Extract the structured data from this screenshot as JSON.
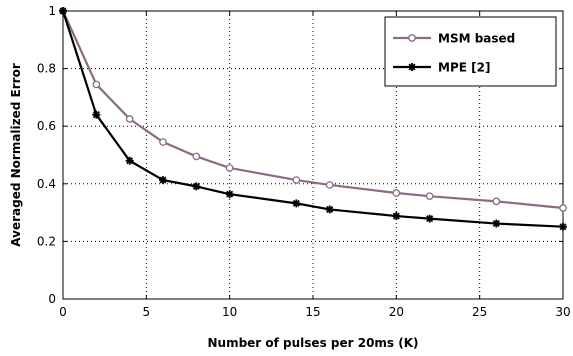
{
  "chart_data": {
    "type": "line",
    "title": "",
    "xlabel": "Number of pulses per 20ms (K)",
    "ylabel": "Averaged Normalized Error",
    "xlim": [
      0,
      30
    ],
    "ylim": [
      0,
      1
    ],
    "xticks": [
      0,
      5,
      10,
      15,
      20,
      25,
      30
    ],
    "yticks": [
      0,
      0.2,
      0.4,
      0.6,
      0.8,
      1
    ],
    "grid": true,
    "legend_position": "top-right",
    "series": [
      {
        "name": "MSM based",
        "color": "#8b6b85",
        "marker": "circle",
        "x": [
          0,
          2,
          4,
          6,
          8,
          10,
          14,
          16,
          20,
          22,
          26,
          30
        ],
        "values": [
          1.0,
          0.745,
          0.625,
          0.545,
          0.495,
          0.455,
          0.413,
          0.396,
          0.368,
          0.357,
          0.339,
          0.316
        ]
      },
      {
        "name": "MPE [2]",
        "color": "#000000",
        "marker": "star",
        "x": [
          0,
          2,
          4,
          6,
          8,
          10,
          14,
          16,
          20,
          22,
          26,
          30
        ],
        "values": [
          1.0,
          0.64,
          0.48,
          0.413,
          0.391,
          0.364,
          0.332,
          0.311,
          0.288,
          0.279,
          0.262,
          0.251
        ]
      }
    ]
  }
}
